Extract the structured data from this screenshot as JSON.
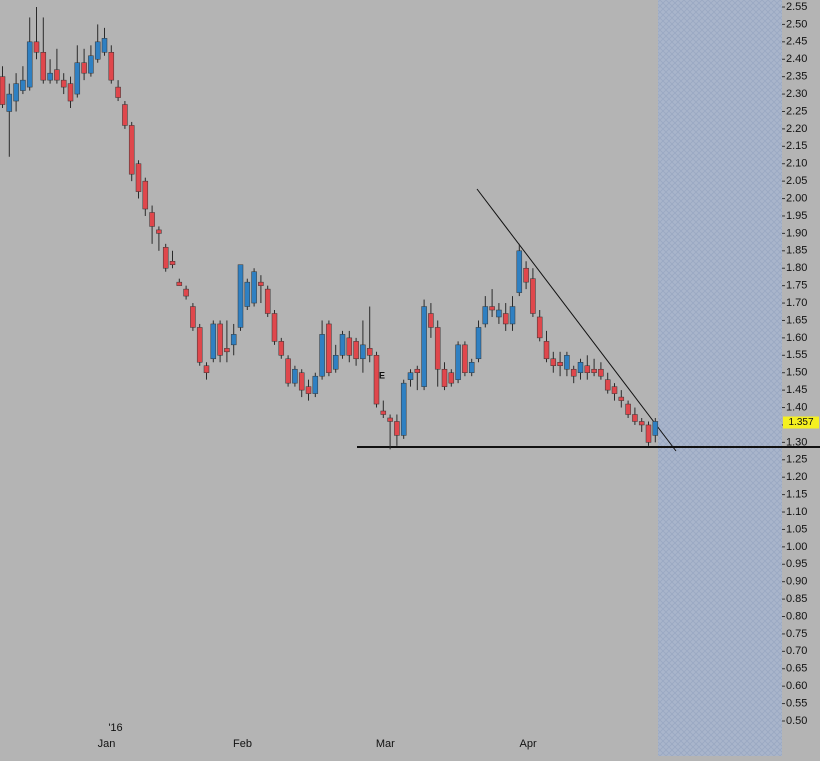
{
  "chart_data": {
    "type": "candlestick",
    "categories": [
      null,
      null,
      null,
      null,
      null,
      null,
      null,
      null,
      null,
      null,
      null,
      null,
      null,
      null,
      null,
      "Jan",
      null,
      null,
      null,
      null,
      null,
      null,
      null,
      null,
      null,
      null,
      null,
      null,
      null,
      null,
      null,
      null,
      null,
      null,
      null,
      "Feb",
      null,
      null,
      null,
      null,
      null,
      null,
      null,
      null,
      null,
      null,
      null,
      null,
      null,
      null,
      null,
      null,
      null,
      null,
      null,
      null,
      "Mar",
      null,
      null,
      null,
      null,
      null,
      null,
      null,
      null,
      null,
      null,
      null,
      null,
      null,
      null,
      null,
      null,
      null,
      null,
      null,
      null,
      "Apr",
      null,
      null,
      null,
      null,
      null,
      null,
      null,
      null,
      null,
      null,
      null,
      null,
      null,
      null,
      null,
      null,
      null,
      null,
      null
    ],
    "year_label": "'16",
    "open": [
      2.35,
      2.25,
      2.28,
      2.31,
      2.32,
      2.45,
      2.42,
      2.34,
      2.37,
      2.34,
      2.33,
      2.3,
      2.39,
      2.36,
      2.4,
      2.42,
      2.42,
      2.32,
      2.27,
      2.21,
      2.1,
      2.05,
      1.96,
      1.91,
      1.86,
      1.82,
      1.76,
      1.74,
      1.69,
      1.63,
      1.52,
      1.54,
      1.64,
      1.57,
      1.58,
      1.63,
      1.69,
      1.7,
      1.76,
      1.74,
      1.67,
      1.59,
      1.54,
      1.47,
      1.5,
      1.46,
      1.44,
      1.49,
      1.64,
      1.51,
      1.55,
      1.6,
      1.59,
      1.54,
      1.57,
      1.55,
      1.39,
      1.37,
      1.36,
      1.32,
      1.48,
      1.51,
      1.46,
      1.67,
      1.63,
      1.51,
      1.5,
      1.48,
      1.58,
      1.5,
      1.54,
      1.64,
      1.69,
      1.66,
      1.67,
      1.64,
      1.73,
      1.8,
      1.77,
      1.66,
      1.59,
      1.54,
      1.53,
      1.51,
      1.51,
      1.5,
      1.52,
      1.51,
      1.51,
      1.48,
      1.46,
      1.43,
      1.41,
      1.38,
      1.36,
      1.35,
      1.32
    ],
    "high": [
      2.38,
      2.33,
      2.36,
      2.38,
      2.52,
      2.55,
      2.52,
      2.4,
      2.43,
      2.36,
      2.35,
      2.44,
      2.43,
      2.44,
      2.5,
      2.49,
      2.44,
      2.34,
      2.28,
      2.22,
      2.11,
      2.06,
      1.98,
      1.92,
      1.87,
      1.85,
      1.77,
      1.75,
      1.7,
      1.64,
      1.53,
      1.65,
      1.65,
      1.65,
      1.64,
      1.81,
      1.77,
      1.8,
      1.78,
      1.75,
      1.68,
      1.6,
      1.55,
      1.52,
      1.51,
      1.48,
      1.5,
      1.65,
      1.65,
      1.58,
      1.62,
      1.62,
      1.6,
      1.65,
      1.69,
      1.56,
      1.42,
      1.38,
      1.38,
      1.48,
      1.51,
      1.52,
      1.71,
      1.7,
      1.65,
      1.53,
      1.51,
      1.59,
      1.59,
      1.54,
      1.65,
      1.72,
      1.74,
      1.7,
      1.7,
      1.72,
      1.87,
      1.82,
      1.8,
      1.68,
      1.62,
      1.56,
      1.56,
      1.56,
      1.52,
      1.54,
      1.55,
      1.54,
      1.53,
      1.5,
      1.47,
      1.45,
      1.42,
      1.4,
      1.37,
      1.36,
      1.37
    ],
    "low": [
      2.26,
      2.12,
      2.25,
      2.3,
      2.31,
      2.4,
      2.33,
      2.33,
      2.33,
      2.3,
      2.26,
      2.29,
      2.34,
      2.35,
      2.39,
      2.41,
      2.33,
      2.28,
      2.2,
      2.05,
      2.0,
      1.95,
      1.87,
      1.85,
      1.79,
      1.8,
      1.75,
      1.71,
      1.62,
      1.52,
      1.48,
      1.53,
      1.53,
      1.53,
      1.55,
      1.62,
      1.68,
      1.69,
      1.7,
      1.66,
      1.58,
      1.54,
      1.46,
      1.46,
      1.43,
      1.42,
      1.43,
      1.48,
      1.49,
      1.5,
      1.54,
      1.53,
      1.52,
      1.5,
      1.53,
      1.4,
      1.37,
      1.28,
      1.29,
      1.31,
      1.46,
      1.45,
      1.45,
      1.6,
      1.46,
      1.45,
      1.46,
      1.47,
      1.49,
      1.49,
      1.53,
      1.63,
      1.66,
      1.64,
      1.62,
      1.62,
      1.72,
      1.74,
      1.66,
      1.59,
      1.53,
      1.5,
      1.49,
      1.49,
      1.47,
      1.48,
      1.48,
      1.49,
      1.48,
      1.44,
      1.42,
      1.4,
      1.37,
      1.35,
      1.33,
      1.29,
      1.3
    ],
    "close": [
      2.27,
      2.3,
      2.33,
      2.34,
      2.45,
      2.42,
      2.34,
      2.36,
      2.34,
      2.32,
      2.28,
      2.39,
      2.36,
      2.41,
      2.45,
      2.46,
      2.34,
      2.29,
      2.21,
      2.07,
      2.02,
      1.97,
      1.92,
      1.9,
      1.8,
      1.81,
      1.75,
      1.72,
      1.63,
      1.53,
      1.5,
      1.64,
      1.55,
      1.56,
      1.61,
      1.81,
      1.76,
      1.79,
      1.75,
      1.67,
      1.59,
      1.55,
      1.47,
      1.51,
      1.45,
      1.44,
      1.49,
      1.61,
      1.5,
      1.55,
      1.61,
      1.55,
      1.54,
      1.58,
      1.55,
      1.41,
      1.38,
      1.36,
      1.32,
      1.47,
      1.5,
      1.5,
      1.69,
      1.63,
      1.51,
      1.46,
      1.47,
      1.58,
      1.5,
      1.53,
      1.63,
      1.69,
      1.68,
      1.68,
      1.64,
      1.69,
      1.85,
      1.76,
      1.67,
      1.6,
      1.54,
      1.52,
      1.52,
      1.55,
      1.49,
      1.53,
      1.5,
      1.5,
      1.49,
      1.45,
      1.44,
      1.42,
      1.38,
      1.36,
      1.35,
      1.3,
      1.36
    ],
    "up_color": "#2f80c2",
    "down_color": "#e0474c",
    "annotation": "E",
    "last_price": 1.357,
    "ylim": [
      0.5,
      2.55
    ],
    "yticks": [
      2.55,
      {
        "value": 2.5,
        "label": "2.50"
      },
      2.45,
      {
        "value": 2.4,
        "label": "2.40"
      },
      2.35,
      {
        "value": 2.3,
        "label": "2.30"
      },
      2.25,
      {
        "value": 2.2,
        "label": "2.20"
      },
      2.15,
      {
        "value": 2.1,
        "label": "2.10"
      },
      2.05,
      {
        "value": 2,
        "label": "2.00"
      },
      1.95,
      {
        "value": 1.9,
        "label": "1.90"
      },
      1.85,
      {
        "value": 1.8,
        "label": "1.80"
      },
      1.75,
      {
        "value": 1.7,
        "label": "1.70"
      },
      1.65,
      {
        "value": 1.6,
        "label": "1.60"
      },
      1.55,
      {
        "value": 1.5,
        "label": "1.50"
      },
      1.45,
      {
        "value": 1.4,
        "label": "1.40"
      },
      1.35,
      {
        "value": 1.3,
        "label": "1.30"
      },
      1.25,
      {
        "value": 1.2,
        "label": "1.20"
      },
      1.15,
      {
        "value": 1.1,
        "label": "1.10"
      },
      1.05,
      {
        "value": 1,
        "label": "1.00"
      },
      0.95,
      {
        "value": 0.9,
        "label": "0.90"
      },
      0.85,
      {
        "value": 0.8,
        "label": "0.80"
      },
      0.75,
      {
        "value": 0.7,
        "label": "0.70"
      },
      0.65,
      {
        "value": 0.6,
        "label": "0.60"
      },
      0.55,
      {
        "value": 0.5,
        "label": "0.50"
      }
    ]
  }
}
